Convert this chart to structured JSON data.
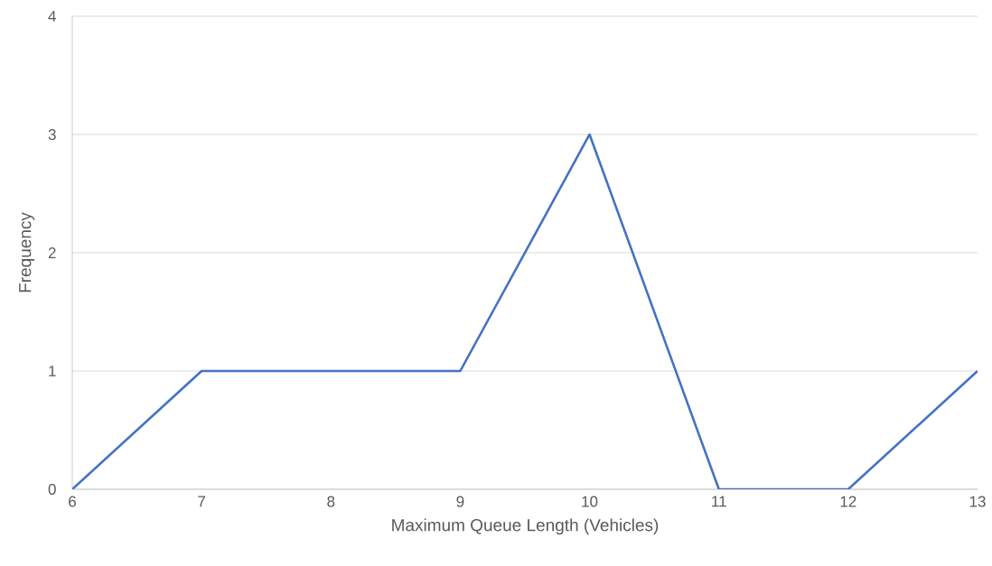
{
  "chart_data": {
    "type": "line",
    "xlabel": "Maximum Queue Length (Vehicles)",
    "ylabel": "Frequency",
    "x": [
      6,
      7,
      8,
      9,
      10,
      11,
      12,
      13
    ],
    "series": [
      {
        "color": "#4472c4",
        "values": [
          0,
          1,
          1,
          1,
          3,
          0,
          0,
          1
        ]
      }
    ],
    "xlim": [
      6,
      13
    ],
    "xticks": [
      6,
      7,
      8,
      9,
      10,
      11,
      12,
      13
    ],
    "ylim": [
      0,
      4
    ],
    "yticks": [
      0,
      1,
      2,
      3,
      4
    ],
    "grid": "y"
  }
}
